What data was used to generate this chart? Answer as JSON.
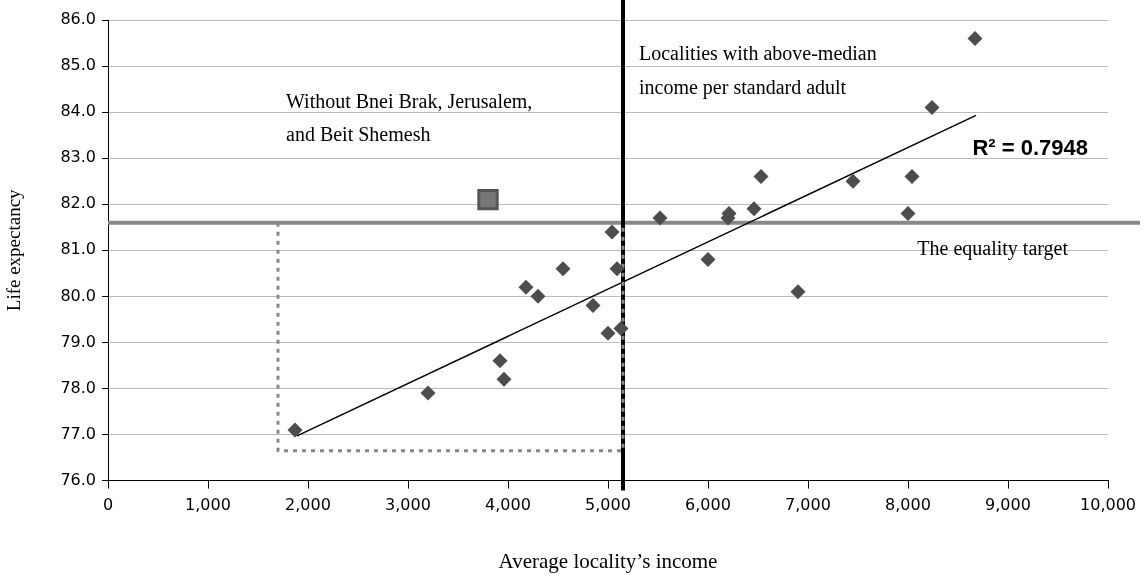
{
  "chart_data": {
    "type": "scatter",
    "xlabel": "Average locality’s income",
    "ylabel": "Life expectancy",
    "xlim": [
      0,
      10000
    ],
    "ylim": [
      76,
      86
    ],
    "xticks": [
      {
        "value": 0,
        "label": "0"
      },
      {
        "value": 1000,
        "label": "1,000"
      },
      {
        "value": 2000,
        "label": "2,000"
      },
      {
        "value": 3000,
        "label": "3,000"
      },
      {
        "value": 4000,
        "label": "4,000"
      },
      {
        "value": 5000,
        "label": "5,000"
      },
      {
        "value": 6000,
        "label": "6,000"
      },
      {
        "value": 7000,
        "label": "7,000"
      },
      {
        "value": 8000,
        "label": "8,000"
      },
      {
        "value": 9000,
        "label": "9,000"
      },
      {
        "value": 10000,
        "label": "10,000"
      }
    ],
    "yticks": [
      {
        "value": 76,
        "label": "76.0"
      },
      {
        "value": 77,
        "label": "77.0"
      },
      {
        "value": 78,
        "label": "78.0"
      },
      {
        "value": 79,
        "label": "79.0"
      },
      {
        "value": 80,
        "label": "80.0"
      },
      {
        "value": 81,
        "label": "81.0"
      },
      {
        "value": 82,
        "label": "82.0"
      },
      {
        "value": 83,
        "label": "83.0"
      },
      {
        "value": 84,
        "label": "84.0"
      },
      {
        "value": 85,
        "label": "85.0"
      },
      {
        "value": 86,
        "label": "86.0"
      }
    ],
    "grid": "y",
    "legend": false,
    "marker": "diamond",
    "series": [
      {
        "type": "line",
        "color": "#888888",
        "line_style": "dotted",
        "marker": "none",
        "x": [
          1700,
          1700,
          5150,
          5150
        ],
        "values": [
          81.6,
          76.65,
          76.65,
          81.6
        ]
      },
      {
        "type": "line",
        "color": "#000000",
        "line_style": "solid",
        "marker": "none",
        "x": [
          1890,
          8680
        ],
        "values": [
          76.97,
          83.93
        ]
      },
      {
        "type": "scatter",
        "color": "#4d4d4d",
        "x": [
          1870,
          3200,
          3920,
          3960,
          4180,
          4300,
          4550,
          4850,
          5000,
          5130,
          5090,
          5040,
          5520,
          6200,
          6210,
          6460,
          6530,
          7450,
          8040,
          8000,
          8240,
          8670,
          6000,
          6900
        ],
        "values": [
          77.1,
          77.9,
          78.6,
          78.2,
          80.2,
          80.0,
          80.6,
          79.8,
          79.2,
          79.3,
          80.6,
          81.4,
          81.7,
          81.7,
          81.8,
          81.9,
          82.6,
          82.5,
          82.6,
          81.8,
          84.1,
          85.6,
          80.8,
          80.1
        ]
      },
      {
        "type": "scatter",
        "color": "#777777",
        "marker": "square",
        "x": [
          3800
        ],
        "values": [
          82.1
        ]
      }
    ],
    "ref_lines": [
      {
        "axis": "y",
        "value": 81.6,
        "label": "The equality target",
        "color": "#888888"
      },
      {
        "axis": "x",
        "value": 5150,
        "label": "Localities with above-median income per standard adult",
        "color": "#000000"
      }
    ],
    "annotations": [
      "Without Bnei Brak, Jerusalem, and Beit Shemesh",
      {
        "text": "R² = 0.7948",
        "x": 8680,
        "y": 83.93
      }
    ]
  }
}
